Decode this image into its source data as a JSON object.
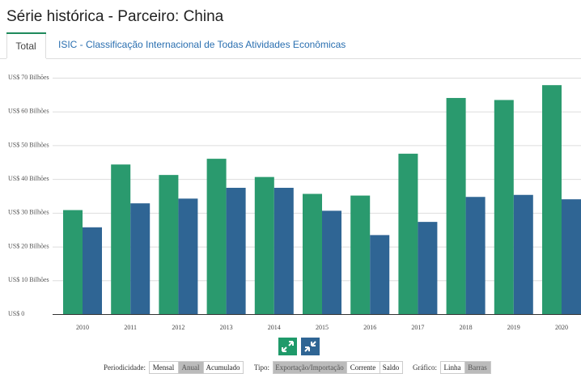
{
  "title": "Série histórica - Parceiro: China",
  "tabs": [
    "Total",
    "ISIC - Classificação Internacional de Todas Atividades Econômicas"
  ],
  "chart_data": {
    "type": "bar",
    "categories": [
      "2010",
      "2011",
      "2012",
      "2013",
      "2014",
      "2015",
      "2016",
      "2017",
      "2018",
      "2019",
      "2020"
    ],
    "series": [
      {
        "color": "#2a9a6e",
        "values": [
          30.8,
          44.3,
          41.2,
          46.0,
          40.6,
          35.6,
          35.1,
          47.5,
          64.0,
          63.4,
          67.8
        ]
      },
      {
        "color": "#2f6594",
        "values": [
          25.7,
          32.8,
          34.2,
          37.4,
          37.4,
          30.6,
          23.4,
          27.3,
          34.7,
          35.3,
          34.0
        ]
      }
    ],
    "ylim": [
      0,
      70
    ],
    "yticks": [
      {
        "value": 0,
        "label": "US$ 0"
      },
      {
        "value": 10,
        "label": "US$ 10 Bilhões"
      },
      {
        "value": 20,
        "label": "US$ 20 Bilhões"
      },
      {
        "value": 30,
        "label": "US$ 30 Bilhões"
      },
      {
        "value": 40,
        "label": "US$ 40 Bilhões"
      },
      {
        "value": 50,
        "label": "US$ 50 Bilhões"
      },
      {
        "value": 60,
        "label": "US$ 60 Bilhões"
      },
      {
        "value": 70,
        "label": "US$ 70 Bilhões"
      }
    ],
    "grid": true
  },
  "controls": [
    {
      "label": "Periodicidade:",
      "options": [
        "Mensal",
        "Anual",
        "Acumulado"
      ],
      "selected": 1
    },
    {
      "label": "Tipo:",
      "options": [
        "Exportação/Importação",
        "Corrente",
        "Saldo"
      ],
      "selected": 0
    },
    {
      "label": "Gráfico:",
      "options": [
        "Linha",
        "Barras"
      ],
      "selected": 1
    }
  ]
}
